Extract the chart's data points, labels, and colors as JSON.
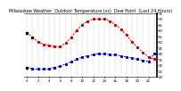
{
  "title": "Milwaukee Weather  Outdoor Temperature (vs)  Dew Point  (Last 24 Hours)",
  "bg_color": "#ffffff",
  "grid_color": "#888888",
  "temp_color": "#cc0000",
  "dew_color": "#0000cc",
  "black_color": "#000000",
  "x_hours": [
    0,
    1,
    2,
    3,
    4,
    5,
    6,
    7,
    8,
    9,
    10,
    11,
    12,
    13,
    14,
    15,
    16,
    17,
    18,
    19,
    20,
    21,
    22,
    23
  ],
  "temp_values": [
    58,
    54,
    50,
    48,
    47,
    46,
    46,
    49,
    54,
    60,
    65,
    68,
    70,
    70,
    70,
    68,
    65,
    61,
    56,
    50,
    45,
    41,
    37,
    35
  ],
  "dew_values": [
    28,
    27,
    27,
    27,
    27,
    28,
    29,
    31,
    33,
    35,
    37,
    38,
    39,
    40,
    40,
    39,
    39,
    38,
    37,
    36,
    35,
    34,
    33,
    40
  ],
  "ylim": [
    20,
    75
  ],
  "ytick_labels": [
    "75",
    "70",
    "65",
    "60",
    "55",
    "50",
    "45",
    "40",
    "35",
    "30",
    "25",
    "20"
  ],
  "ytick_vals": [
    75,
    70,
    65,
    60,
    55,
    50,
    45,
    40,
    35,
    30,
    25,
    20
  ],
  "title_fontsize": 3.5,
  "tick_fontsize": 2.8,
  "line_width": 0.7,
  "marker_size": 1.2
}
